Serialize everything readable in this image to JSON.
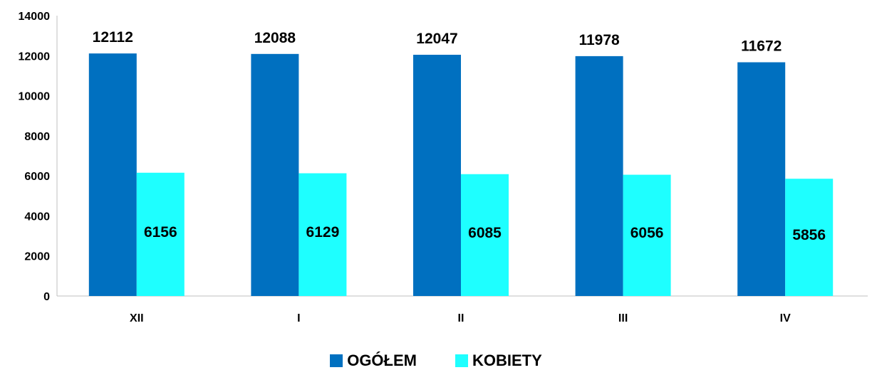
{
  "chart_data": {
    "type": "bar",
    "categories": [
      "XII",
      "I",
      "II",
      "III",
      "IV"
    ],
    "series": [
      {
        "name": "OGÓŁEM",
        "values": [
          12112,
          12088,
          12047,
          11978,
          11672
        ],
        "color": "#0070C0"
      },
      {
        "name": "KOBIETY",
        "values": [
          6156,
          6129,
          6085,
          6056,
          5856
        ],
        "color": "#1EFFFF"
      }
    ],
    "ylim": [
      0,
      14000
    ],
    "yticks": [
      0,
      2000,
      4000,
      6000,
      8000,
      10000,
      12000,
      14000
    ],
    "grid": false,
    "legend_position": "bottom"
  }
}
